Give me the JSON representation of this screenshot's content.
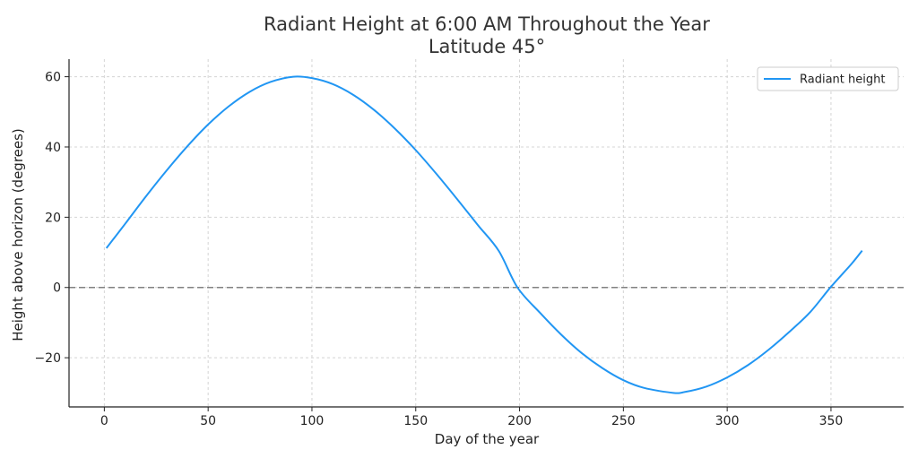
{
  "chart_data": {
    "type": "line",
    "title_line1": "Radiant Height at 6:00 AM Throughout the Year",
    "title_line2": "Latitude 45°",
    "xlabel": "Day of the year",
    "ylabel": "Height above horizon (degrees)",
    "xlim": [
      -17,
      385
    ],
    "ylim": [
      -34,
      65
    ],
    "xticks": [
      0,
      50,
      100,
      150,
      200,
      250,
      300,
      350
    ],
    "xtick_labels": [
      "0",
      "50",
      "100",
      "150",
      "200",
      "250",
      "300",
      "350"
    ],
    "yticks": [
      60,
      40,
      20,
      0,
      -20
    ],
    "ytick_labels": [
      "60",
      "40",
      "20",
      "0",
      "−20"
    ],
    "grid": true,
    "reference_line": {
      "y": 0,
      "style": "dashed",
      "color": "#808080"
    },
    "legend": {
      "position": "top-right",
      "entries": [
        "Radiant height"
      ]
    },
    "series": [
      {
        "name": "Radiant height",
        "color": "#2196f3",
        "x": [
          1,
          10,
          20,
          30,
          40,
          50,
          60,
          70,
          80,
          91,
          100,
          110,
          120,
          130,
          140,
          150,
          160,
          170,
          180,
          190,
          199,
          210,
          220,
          230,
          240,
          250,
          260,
          274,
          280,
          290,
          300,
          310,
          320,
          330,
          340,
          350,
          360,
          365
        ],
        "values": [
          11.2,
          18.1,
          25.9,
          33.3,
          40.2,
          46.4,
          51.6,
          55.7,
          58.5,
          60.0,
          59.6,
          57.9,
          54.8,
          50.5,
          45.2,
          39.1,
          32.3,
          25.1,
          17.7,
          10.4,
          0.0,
          -7.3,
          -13.4,
          -18.7,
          -23.0,
          -26.4,
          -28.6,
          -30.0,
          -29.7,
          -28.2,
          -25.6,
          -22.1,
          -17.7,
          -12.6,
          -7.0,
          0.2,
          6.8,
          10.5
        ]
      }
    ]
  }
}
